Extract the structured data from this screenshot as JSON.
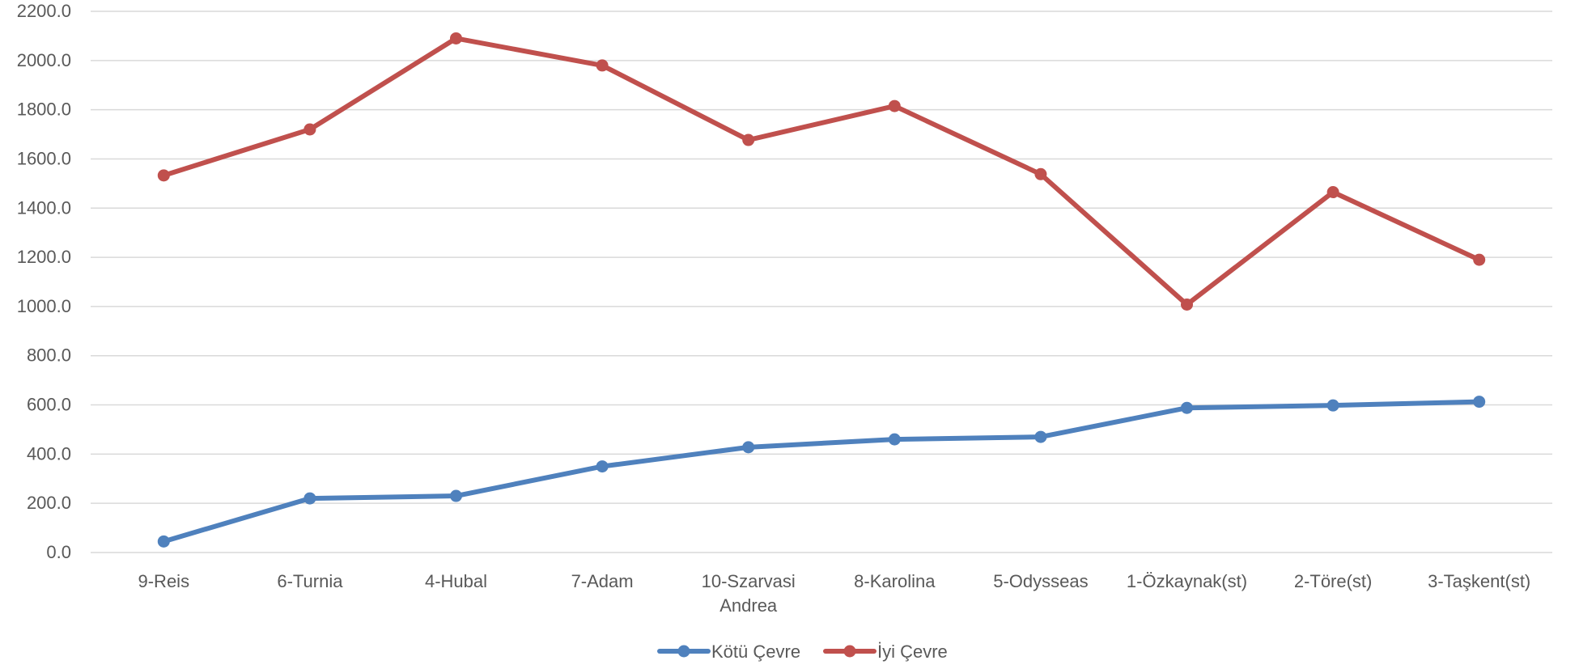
{
  "chart_data": {
    "type": "line",
    "title": "",
    "xlabel": "",
    "ylabel": "",
    "ylim": [
      0,
      2200
    ],
    "yticks": [
      "0.0",
      "200.0",
      "400.0",
      "600.0",
      "800.0",
      "1000.0",
      "1200.0",
      "1400.0",
      "1600.0",
      "1800.0",
      "2000.0",
      "2200.0"
    ],
    "categories": [
      [
        "9-Reis"
      ],
      [
        "6-Turnia"
      ],
      [
        "4-Hubal"
      ],
      [
        "7-Adam"
      ],
      [
        "10-Szarvasi",
        "Andrea"
      ],
      [
        "8-Karolina"
      ],
      [
        "5-Odysseas"
      ],
      [
        "1-Özkaynak(st)"
      ],
      [
        "2-Töre(st)"
      ],
      [
        "3-Taşkent(st)"
      ]
    ],
    "series": [
      {
        "name": "Kötü Çevre",
        "color": "#4f81bd",
        "values": [
          45,
          220,
          230,
          350,
          428,
          460,
          470,
          588,
          598,
          613
        ]
      },
      {
        "name": "İyi Çevre",
        "color": "#c0504d",
        "values": [
          1533,
          1720,
          2090,
          1980,
          1677,
          1815,
          1538,
          1008,
          1465,
          1190
        ]
      }
    ],
    "grid": true,
    "legend_position": "bottom"
  }
}
